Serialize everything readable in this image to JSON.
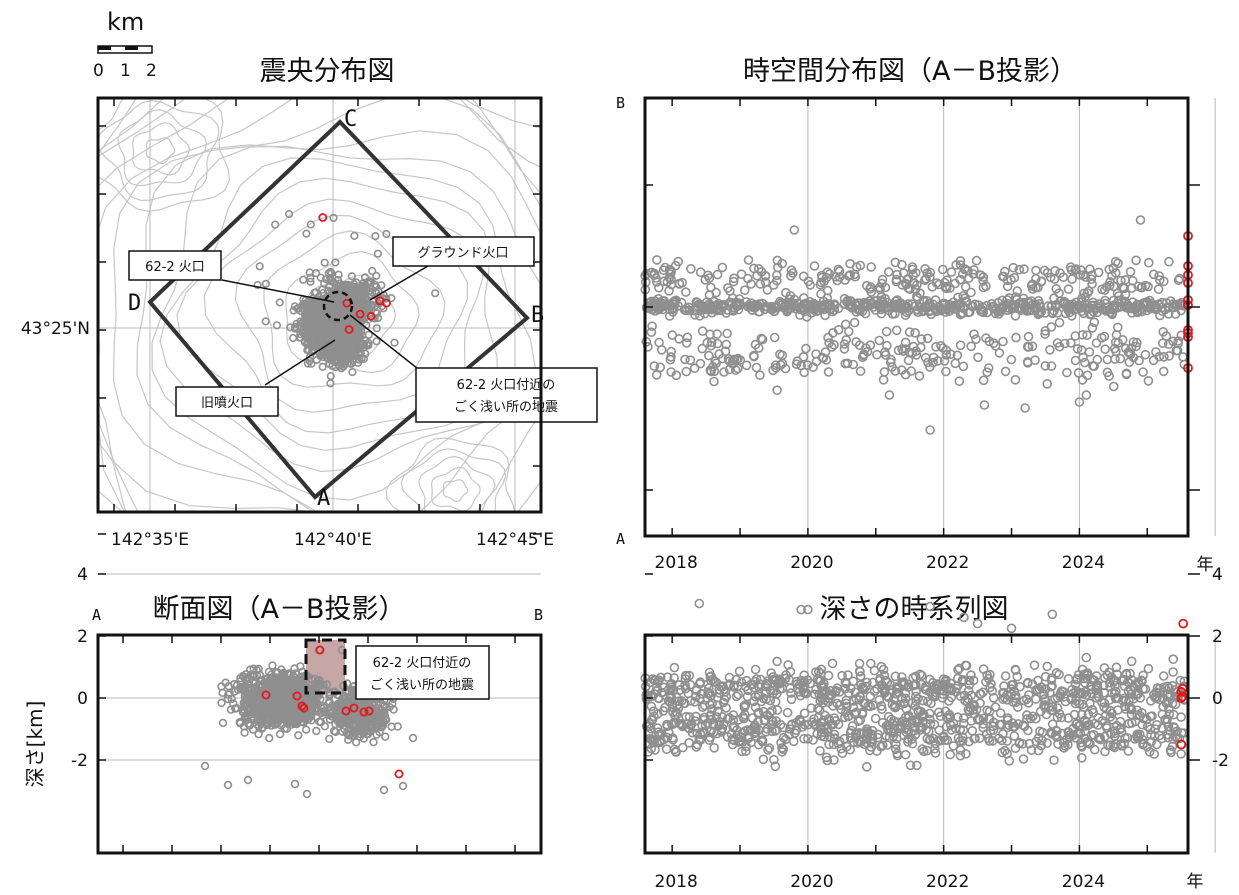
{
  "scale_bar": {
    "unit": "km",
    "ticks": [
      "0",
      "1",
      "2"
    ]
  },
  "chart_data": [
    {
      "type": "scatter",
      "title": "震央分布図",
      "xlabel": "",
      "ylabel": "",
      "x_ticks": [
        "142°35'E",
        "142°40'E",
        "142°45'E"
      ],
      "y_ticks": [
        "43°25'N"
      ],
      "corner_labels": [
        "A",
        "B",
        "C",
        "D"
      ],
      "annotations": [
        {
          "text": "62-2 火口"
        },
        {
          "text": "グラウンド火口"
        },
        {
          "text": "旧噴火口"
        },
        {
          "text": "62-2 火口付近の",
          "text2": "ごく浅い所の地震"
        }
      ],
      "series": [
        {
          "color": "#8f8f8f",
          "count_approx": 1500
        },
        {
          "color": "#e31a1c",
          "points_lonlat": [
            [
              142.662,
              43.467
            ],
            [
              142.673,
              43.428
            ],
            [
              142.688,
              43.429
            ],
            [
              142.691,
              43.428
            ],
            [
              142.679,
              43.423
            ],
            [
              142.684,
              43.422
            ],
            [
              142.674,
              43.416
            ]
          ]
        }
      ]
    },
    {
      "type": "scatter",
      "title": "時空間分布図（A－B投影）",
      "x_ticks": [
        "2018",
        "2020",
        "2022",
        "2024"
      ],
      "x_unit_label": "年",
      "y_end_labels": [
        "B",
        "A"
      ],
      "xlim": [
        2017.6,
        2025.6
      ],
      "series": [
        {
          "color": "#8f8f8f",
          "count_approx": 1600
        },
        {
          "color": "#e31a1c",
          "note_values_at_end": true
        }
      ]
    },
    {
      "type": "scatter",
      "title": "断面図（A－B投影）",
      "ylabel": "深さ[km]",
      "y_ticks": [
        "-2",
        "0",
        "2",
        "4"
      ],
      "ylim": [
        5,
        -2.7
      ],
      "end_labels": [
        "A",
        "B"
      ],
      "annotation": {
        "text": "62-2 火口付近の",
        "text2": "ごく浅い所の地震"
      },
      "series": [
        {
          "color": "#8f8f8f",
          "count_approx": 1500
        },
        {
          "color": "#e31a1c",
          "points_depth": [
            -1.5,
            0.0,
            0.0,
            0.3,
            0.4,
            0.35,
            0.3,
            0.4,
            0.4,
            2.4
          ]
        }
      ]
    },
    {
      "type": "scatter",
      "title": "深さの時系列図",
      "x_ticks": [
        "2018",
        "2020",
        "2022",
        "2024"
      ],
      "x_unit_label": "年",
      "y_ticks": [
        "-2",
        "0",
        "2",
        "4"
      ],
      "ylim": [
        5,
        -2.7
      ],
      "xlim": [
        2017.6,
        2025.6
      ],
      "series": [
        {
          "color": "#8f8f8f",
          "count_approx": 1500
        },
        {
          "color": "#e31a1c",
          "points": [
            [
              2025.5,
              -1.5
            ],
            [
              2025.5,
              0.0
            ],
            [
              2025.52,
              0.05
            ],
            [
              2025.5,
              0.2
            ],
            [
              2025.52,
              0.3
            ],
            [
              2025.53,
              2.4
            ]
          ]
        }
      ]
    }
  ]
}
